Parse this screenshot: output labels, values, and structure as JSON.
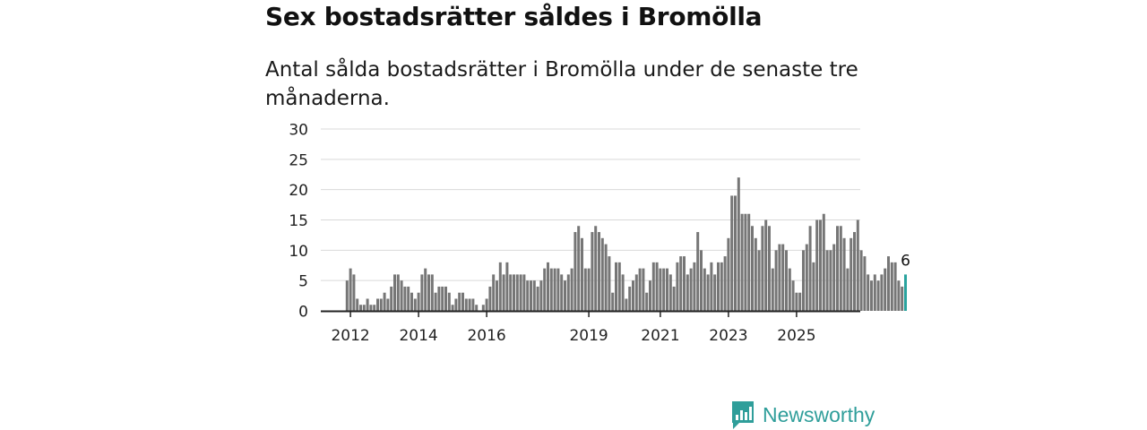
{
  "header": {
    "title": "Sex bostadsrätter såldes i Bromölla",
    "subtitle": "Antal sålda bostadsrätter i Bromölla under de senaste tre månaderna."
  },
  "brand": {
    "name": "Newsworthy",
    "logo_icon": "bar-chart-speech-bubble-icon"
  },
  "colors": {
    "bar": "#767676",
    "highlight": "#2aa39e",
    "grid": "#d9d9d9",
    "axis": "#222222",
    "brand": "#2f9e9a"
  },
  "chart_data": {
    "type": "bar",
    "title": "Sex bostadsrätter såldes i Bromölla",
    "subtitle": "Antal sålda bostadsrätter i Bromölla under de senaste tre månaderna.",
    "xlabel": "",
    "ylabel": "",
    "ylim": [
      0,
      30
    ],
    "yticks": [
      0,
      5,
      10,
      15,
      20,
      25,
      30
    ],
    "grid": true,
    "x_start": "2011-12",
    "xticks": [
      {
        "label": "2012",
        "index": 1
      },
      {
        "label": "2014",
        "index": 21
      },
      {
        "label": "2016",
        "index": 41
      },
      {
        "label": "2019",
        "index": 71
      },
      {
        "label": "2021",
        "index": 92
      },
      {
        "label": "2023",
        "index": 112
      },
      {
        "label": "2025",
        "index": 132
      }
    ],
    "values": [
      5,
      7,
      6,
      2,
      1,
      1,
      2,
      1,
      1,
      2,
      2,
      3,
      2,
      4,
      6,
      6,
      5,
      4,
      4,
      3,
      2,
      3,
      6,
      7,
      6,
      6,
      3,
      4,
      4,
      4,
      3,
      1,
      2,
      3,
      3,
      2,
      2,
      2,
      1,
      0,
      1,
      2,
      4,
      6,
      5,
      8,
      6,
      8,
      6,
      6,
      6,
      6,
      6,
      5,
      5,
      5,
      4,
      5,
      7,
      8,
      7,
      7,
      7,
      6,
      5,
      6,
      7,
      13,
      14,
      12,
      7,
      7,
      13,
      14,
      13,
      12,
      11,
      9,
      3,
      8,
      8,
      6,
      2,
      4,
      5,
      6,
      7,
      7,
      3,
      5,
      8,
      8,
      7,
      7,
      7,
      6,
      4,
      8,
      9,
      9,
      6,
      7,
      8,
      13,
      10,
      7,
      6,
      8,
      6,
      8,
      8,
      9,
      12,
      19,
      19,
      22,
      16,
      16,
      16,
      14,
      12,
      10,
      14,
      15,
      14,
      7,
      10,
      11,
      11,
      10,
      7,
      5,
      3,
      3,
      10,
      11,
      14,
      8,
      15,
      15,
      16,
      10,
      10,
      11,
      14,
      14,
      12,
      7,
      12,
      13,
      15,
      10,
      9,
      6,
      5,
      6,
      5,
      6,
      7,
      9,
      8,
      8,
      5,
      4,
      6
    ],
    "highlight_last": true,
    "last_value_label": "6"
  }
}
